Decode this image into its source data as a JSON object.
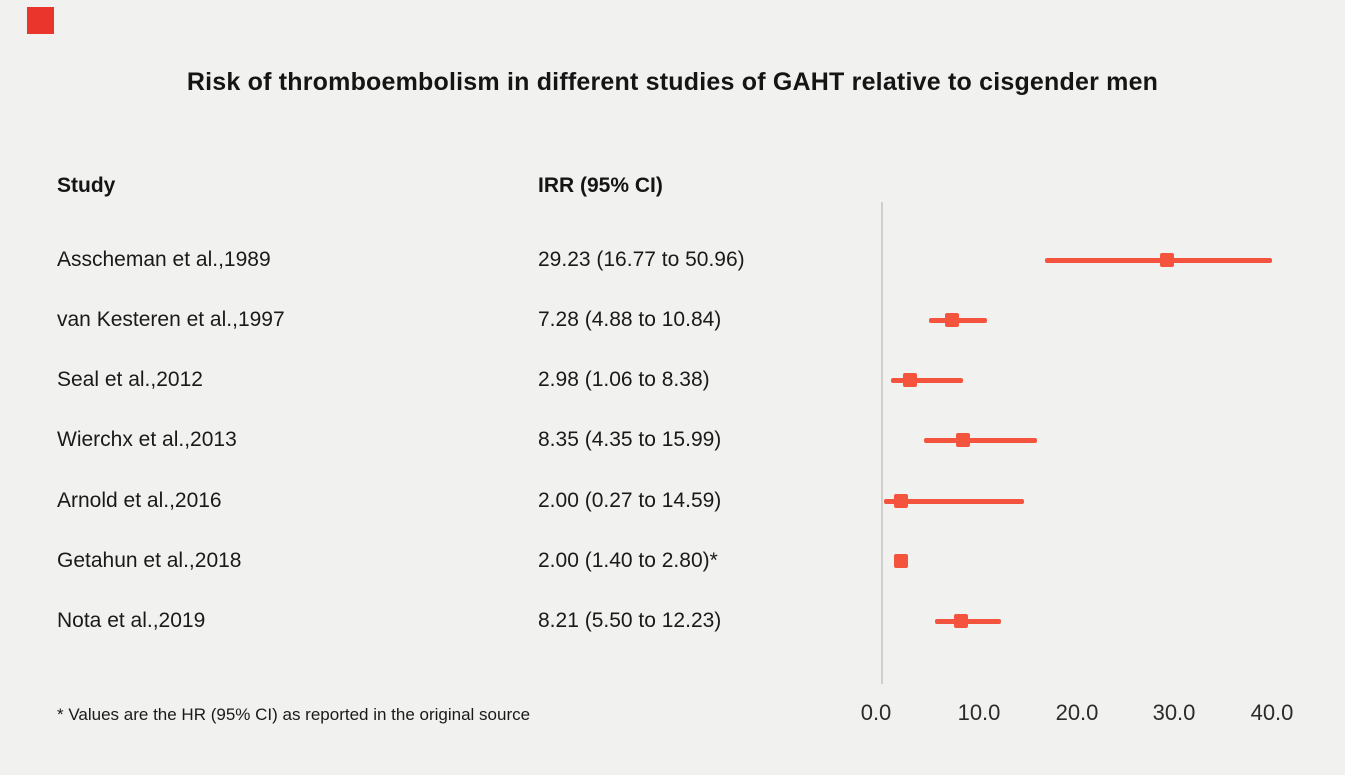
{
  "page": {
    "background_color": "#f1f1ef"
  },
  "logo": {
    "color": "#e9352b"
  },
  "title": "Risk of thromboembolism in different studies of GAHT relative to cisgender men",
  "columns": {
    "study": "Study",
    "irr": "IRR (95% CI)"
  },
  "footnote": "* Values are the HR (95% CI) as reported in the original source",
  "chart_data": {
    "type": "forest-plot",
    "marker_color": "#f4543e",
    "axis_color": "#cfcfcc",
    "xlim": [
      0,
      40
    ],
    "x_ticks": [
      "0.0",
      "10.0",
      "20.0",
      "30.0",
      "40.0"
    ],
    "x_tick_values": [
      0,
      10,
      20,
      30,
      40
    ],
    "legend_position": "none",
    "grid": false,
    "studies": [
      {
        "label": "Asscheman et al.,1989",
        "irr_text": "29.23 (16.77 to 50.96)",
        "est": 29.23,
        "lo": 16.77,
        "hi": 50.96
      },
      {
        "label": "van Kesteren et al.,1997",
        "irr_text": "7.28 (4.88 to 10.84)",
        "est": 7.28,
        "lo": 4.88,
        "hi": 10.84
      },
      {
        "label": "Seal et al.,2012",
        "irr_text": "2.98 (1.06 to 8.38)",
        "est": 2.98,
        "lo": 1.06,
        "hi": 8.38
      },
      {
        "label": "Wierchx et al.,2013",
        "irr_text": "8.35 (4.35 to 15.99)",
        "est": 8.35,
        "lo": 4.35,
        "hi": 15.99
      },
      {
        "label": "Arnold et al.,2016",
        "irr_text": "2.00 (0.27 to 14.59)",
        "est": 2.0,
        "lo": 0.27,
        "hi": 14.59
      },
      {
        "label": "Getahun et al.,2018",
        "irr_text": "2.00 (1.40 to 2.80)*",
        "est": 2.0,
        "lo": 1.4,
        "hi": 2.8
      },
      {
        "label": "Nota et al.,2019",
        "irr_text": "8.21 (5.50 to 12.23)",
        "est": 8.21,
        "lo": 5.5,
        "hi": 12.23
      }
    ]
  }
}
